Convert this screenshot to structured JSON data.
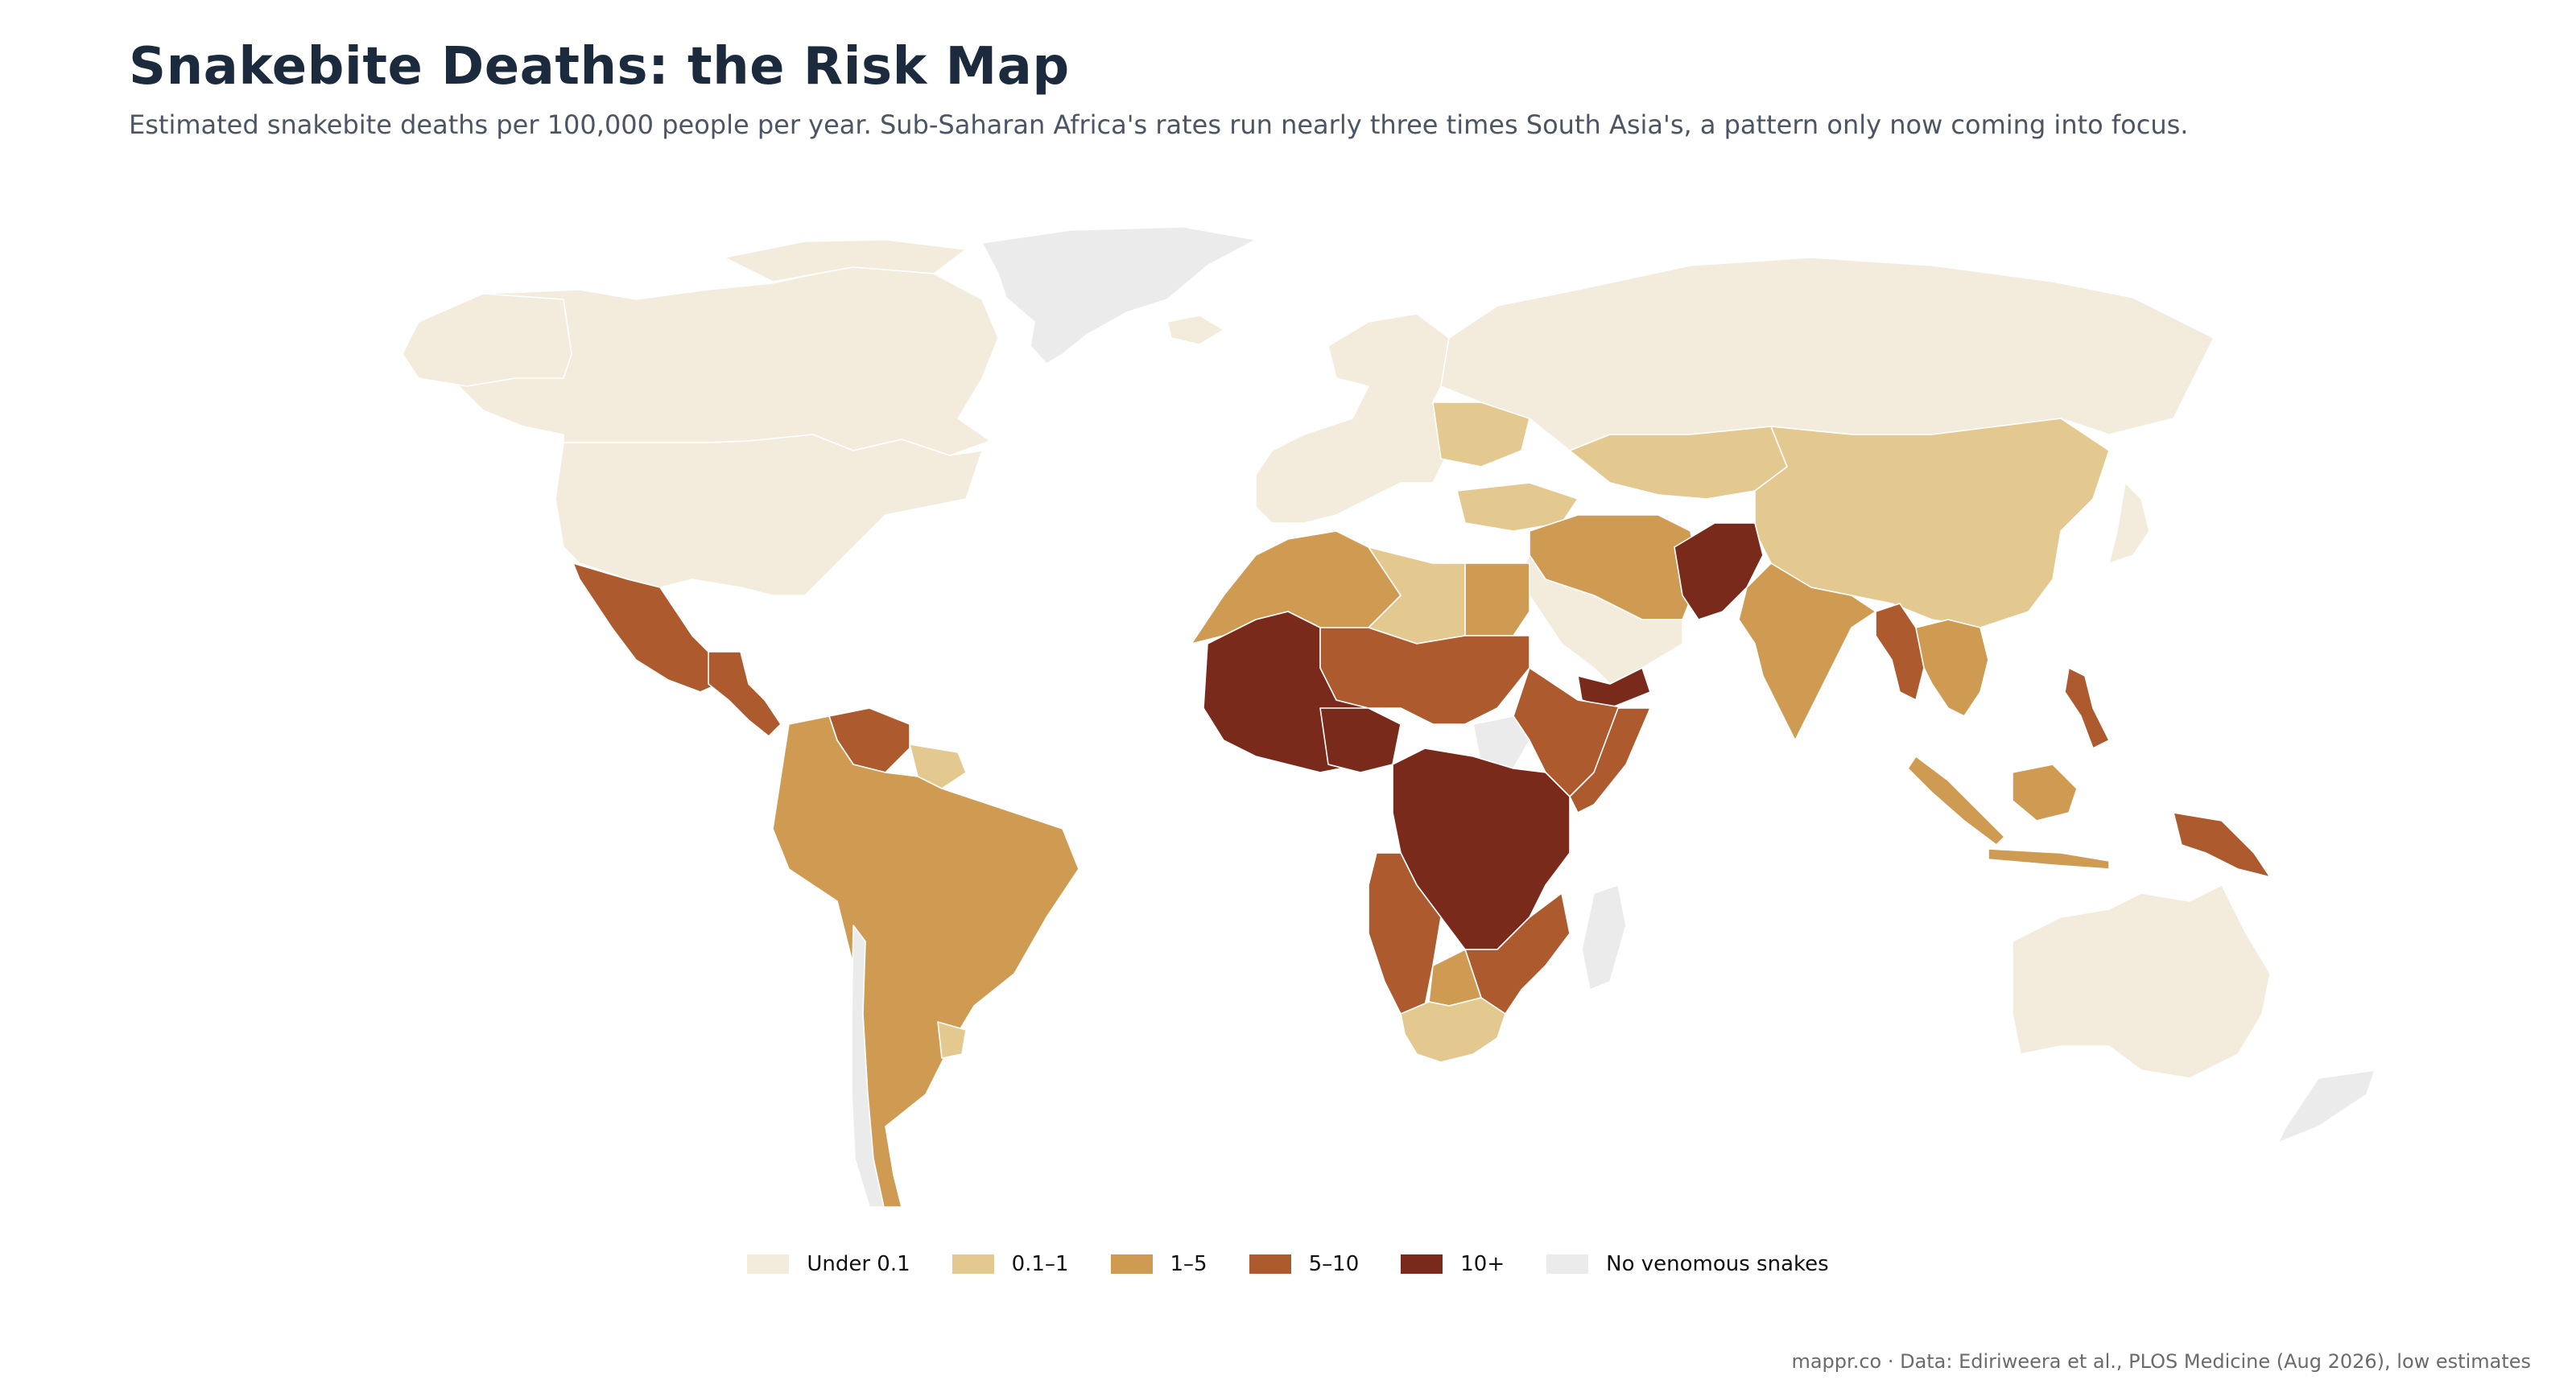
{
  "header": {
    "title": "Snakebite Deaths: the Risk Map",
    "subtitle": "Estimated snakebite deaths per 100,000 people per year. Sub-Saharan Africa's rates run nearly three times South Asia's, a pattern only now coming into focus."
  },
  "colors": {
    "under_0_1": "#f3ebdc",
    "c0_1_1": "#e3c88f",
    "c1_5": "#cf9a52",
    "c5_10": "#ae5a2f",
    "c10_plus": "#7a2a1b",
    "none": "#ebebeb"
  },
  "legend": [
    {
      "label": "Under 0.1",
      "color": "#f3ebdc"
    },
    {
      "label": "0.1–1",
      "color": "#e3c88f"
    },
    {
      "label": "1–5",
      "color": "#cf9a52"
    },
    {
      "label": "5–10",
      "color": "#ae5a2f"
    },
    {
      "label": "10+",
      "color": "#7a2a1b"
    },
    {
      "label": "No venomous snakes",
      "color": "#ebebeb"
    }
  ],
  "footer": {
    "credit": "mappr.co · Data: Ediriweera et al., PLOS Medicine (Aug 2026), low estimates"
  }
}
